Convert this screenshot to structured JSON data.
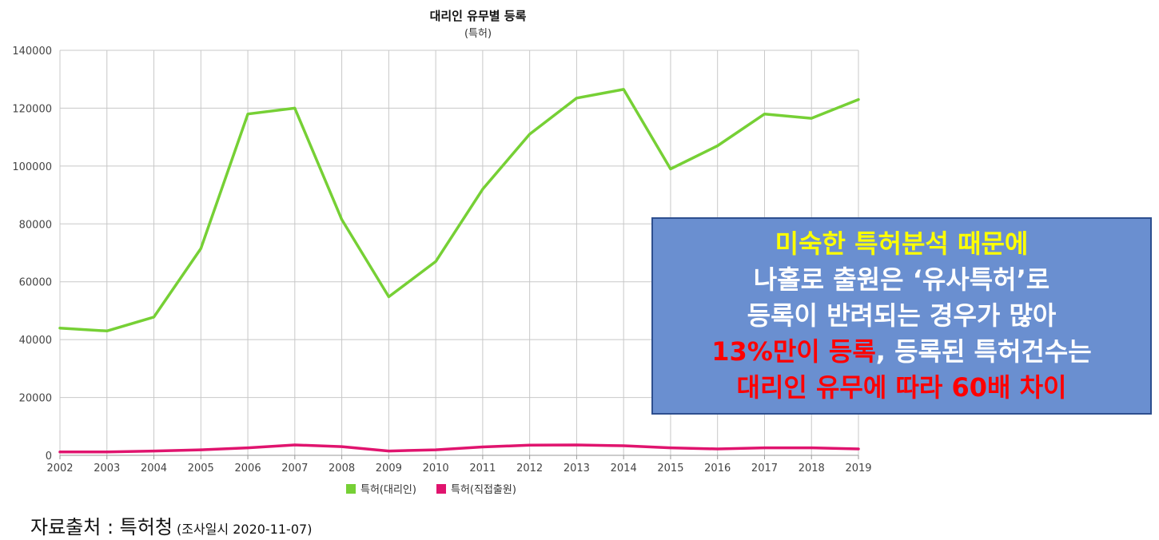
{
  "chart_data": {
    "type": "line",
    "title": "대리인 유무별 등록",
    "subtitle": "(특허)",
    "xlabel": "",
    "ylabel": "",
    "ylim": [
      0,
      140000
    ],
    "yticks": [
      0,
      20000,
      40000,
      60000,
      80000,
      100000,
      120000,
      140000
    ],
    "x": [
      "2002",
      "2003",
      "2004",
      "2005",
      "2006",
      "2007",
      "2008",
      "2009",
      "2010",
      "2011",
      "2012",
      "2013",
      "2014",
      "2015",
      "2016",
      "2017",
      "2018",
      "2019"
    ],
    "grid": true,
    "legend_position": "bottom",
    "series": [
      {
        "name": "특허(대리인)",
        "color": "#76d035",
        "values": [
          44000,
          43000,
          47800,
          71500,
          118000,
          120000,
          81500,
          54800,
          67000,
          92000,
          111000,
          123500,
          126500,
          99000,
          107000,
          118000,
          116500,
          123000
        ]
      },
      {
        "name": "특허(직접출원)",
        "color": "#e0146e",
        "values": [
          1200,
          1200,
          1500,
          1900,
          2600,
          3600,
          3000,
          1500,
          1900,
          2900,
          3500,
          3600,
          3300,
          2600,
          2200,
          2600,
          2600,
          2200
        ]
      }
    ]
  },
  "callout": {
    "line1": "미숙한 특허분석 때문에",
    "line2": "나홀로 출원은 ‘유사특허’로",
    "line3": "등록이 반려되는 경우가 많아",
    "line4_highlight": "13%만이 등록",
    "line4_rest": ", 등록된 특허건수는",
    "line5": "대리인 유무에 따라 60배 차이",
    "colors": {
      "yellow": "#ffff00",
      "white": "#ffffff",
      "red": "#ff0000",
      "background": "#6a8fd0"
    }
  },
  "source": {
    "label": "자료출처 : 특허청",
    "date": "(조사일시 2020-11-07)"
  }
}
